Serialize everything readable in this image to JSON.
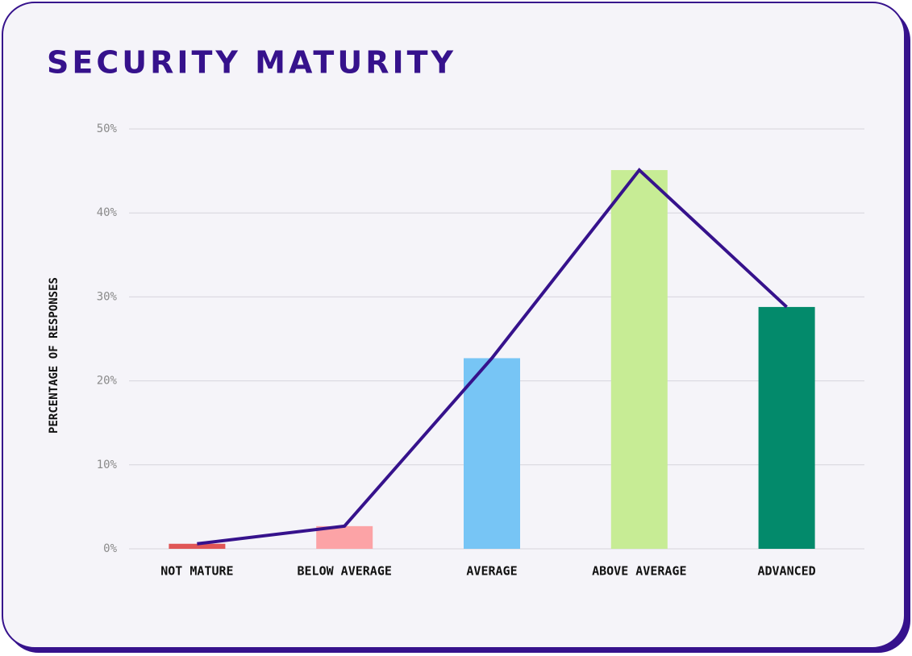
{
  "chart_data": {
    "type": "bar",
    "title": "SECURITY MATURITY",
    "y_label": "PERCENTAGE OF RESPONSES",
    "categories": [
      "NOT MATURE",
      "BELOW AVERAGE",
      "AVERAGE",
      "ABOVE AVERAGE",
      "ADVANCED"
    ],
    "values": [
      0.6,
      2.7,
      22.7,
      45.1,
      28.8
    ],
    "colors": [
      "#e05656",
      "#fca3a6",
      "#77c5f5",
      "#c7ec95",
      "#038a6b"
    ],
    "line_color": "#36128c",
    "ylim": [
      0,
      50
    ],
    "yticks": [
      {
        "value": 0,
        "label": "0%"
      },
      {
        "value": 10,
        "label": "10%"
      },
      {
        "value": 20,
        "label": "20%"
      },
      {
        "value": 30,
        "label": "30%"
      },
      {
        "value": 40,
        "label": "40%"
      },
      {
        "value": 50,
        "label": "50%"
      }
    ],
    "grid": true
  }
}
